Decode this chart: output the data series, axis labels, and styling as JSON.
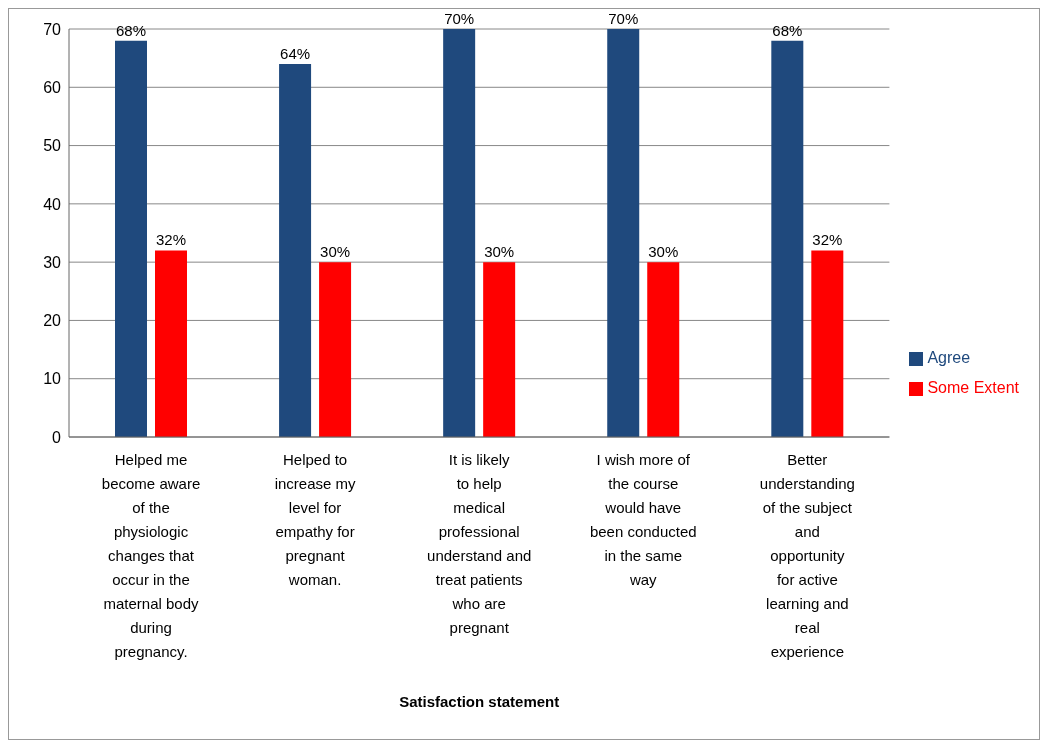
{
  "chart_data": {
    "type": "bar",
    "xlabel": "Satisfaction statement",
    "categories": [
      "Helped me become aware of the physiologic changes that occur in the maternal body during pregnancy.",
      "Helped to increase my level for empathy for pregnant woman.",
      "It is likely to help medical professional understand and treat patients who are pregnant",
      "I wish more of the course would have been conducted in the same way",
      "Better understanding of the subject and opportunity for active learning and real experience"
    ],
    "series": [
      {
        "name": "Agree",
        "color": "#1f497d",
        "values": [
          68,
          64,
          70,
          70,
          68
        ],
        "value_labels": [
          "68%",
          "64%",
          "70%",
          "70%",
          "68%"
        ]
      },
      {
        "name": "Some Extent",
        "color": "#ff0000",
        "values": [
          32,
          30,
          30,
          30,
          32
        ],
        "value_labels": [
          "32%",
          "30%",
          "30%",
          "30%",
          "32%"
        ]
      }
    ],
    "ylim": [
      0,
      70
    ],
    "yticks": [
      0,
      10,
      20,
      30,
      40,
      50,
      60,
      70
    ],
    "grid": "y",
    "legend": "right"
  }
}
